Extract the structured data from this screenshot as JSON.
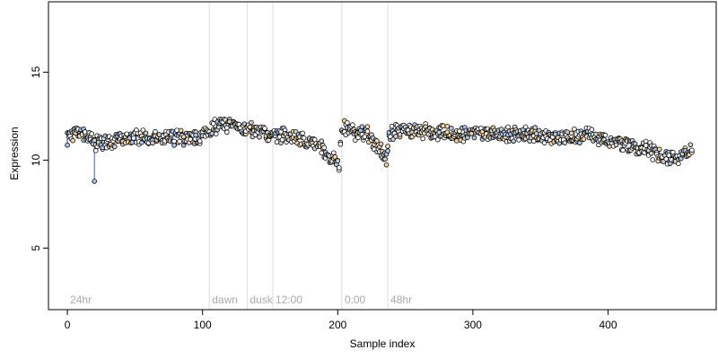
{
  "chart_data": {
    "type": "scatter",
    "title": "",
    "xlabel": "Sample index",
    "ylabel": "Expression",
    "xlim": [
      -14,
      480
    ],
    "ylim": [
      1.5,
      19
    ],
    "x_ticks": [
      0,
      100,
      200,
      300,
      400
    ],
    "y_ticks": [
      5,
      10,
      15
    ],
    "grid": false,
    "legend": "none",
    "colors": {
      "point_outline": "#000000",
      "light_blue": "#a8c4e8",
      "light_orange": "#f7d6a0",
      "bar_blue": "#4a7fd0",
      "bar_orange": "#f0a030",
      "bar_gray": "#888888",
      "separator": "#dddddd",
      "section_text": "#aaaaaa"
    },
    "sections": [
      {
        "label": "24hr",
        "x": 0
      },
      {
        "label": "dawn",
        "x": 105
      },
      {
        "label": "dusk",
        "x": 133
      },
      {
        "label": "12:00",
        "x": 152
      },
      {
        "label": "0:00",
        "x": 203
      },
      {
        "label": "48hr",
        "x": 237
      }
    ],
    "separators": [
      105,
      133,
      152,
      203,
      237
    ],
    "series_trend": [
      [
        0,
        11.3
      ],
      [
        10,
        11.5
      ],
      [
        18,
        11.1
      ],
      [
        20,
        10.9
      ],
      [
        25,
        11.0
      ],
      [
        35,
        11.1
      ],
      [
        50,
        11.3
      ],
      [
        65,
        11.2
      ],
      [
        80,
        11.3
      ],
      [
        95,
        11.2
      ],
      [
        105,
        11.7
      ],
      [
        112,
        12.0
      ],
      [
        125,
        12.0
      ],
      [
        133,
        11.8
      ],
      [
        140,
        11.6
      ],
      [
        150,
        11.5
      ],
      [
        160,
        11.4
      ],
      [
        170,
        11.3
      ],
      [
        180,
        11.0
      ],
      [
        188,
        10.7
      ],
      [
        195,
        10.2
      ],
      [
        201,
        9.8
      ],
      [
        203,
        11.9
      ],
      [
        210,
        11.6
      ],
      [
        222,
        11.5
      ],
      [
        230,
        10.8
      ],
      [
        236,
        10.0
      ],
      [
        238,
        11.5
      ],
      [
        250,
        11.8
      ],
      [
        270,
        11.6
      ],
      [
        290,
        11.4
      ],
      [
        310,
        11.5
      ],
      [
        330,
        11.5
      ],
      [
        350,
        11.4
      ],
      [
        370,
        11.3
      ],
      [
        385,
        11.4
      ],
      [
        395,
        11.2
      ],
      [
        410,
        10.9
      ],
      [
        430,
        10.6
      ],
      [
        440,
        10.1
      ],
      [
        450,
        10.2
      ],
      [
        462,
        10.5
      ]
    ],
    "outliers": [
      [
        20,
        8.8
      ]
    ]
  }
}
